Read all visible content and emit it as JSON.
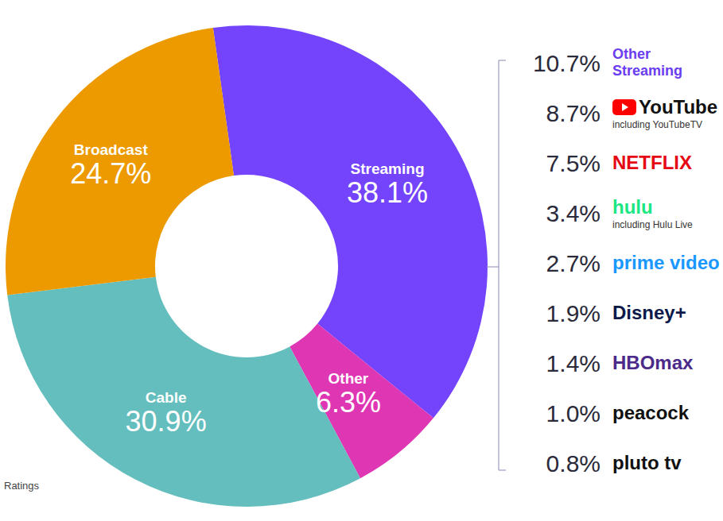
{
  "chart_data": {
    "type": "pie",
    "categories": [
      "Streaming",
      "Other",
      "Cable",
      "Broadcast"
    ],
    "values": [
      38.1,
      6.3,
      30.9,
      24.7
    ],
    "value_labels": [
      "38.1%",
      "6.3%",
      "30.9%",
      "24.7%"
    ],
    "colors": [
      "#7344fb",
      "#df36b4",
      "#63bebd",
      "#ec9a00"
    ],
    "data_labels": true,
    "breakdown": {
      "categories": [
        "Other Streaming",
        "YouTube",
        "NETFLIX",
        "hulu",
        "prime video",
        "Disney+",
        "HBOmax",
        "peacock",
        "pluto tv"
      ],
      "values": [
        10.7,
        8.7,
        7.5,
        3.4,
        2.7,
        1.9,
        1.4,
        1.0,
        0.8
      ],
      "value_labels": [
        "10.7%",
        "8.7%",
        "7.5%",
        "3.4%",
        "2.7%",
        "1.9%",
        "1.4%",
        "1.0%",
        "0.8%"
      ],
      "notes": [
        null,
        "including YouTubeTV",
        null,
        "including Hulu Live",
        null,
        null,
        null,
        null,
        null
      ],
      "colors": [
        "#6a3df0",
        "#111111",
        "#e50914",
        "#1ce783",
        "#1a98ff",
        "#0b1a4a",
        "#4b2a8a",
        "#111111",
        "#111111"
      ]
    }
  },
  "source": "Ratings"
}
